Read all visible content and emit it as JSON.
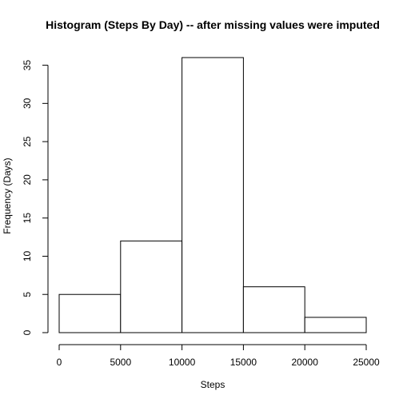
{
  "chart_data": {
    "type": "bar",
    "title": "Histogram (Steps By Day) -- after missing values were imputed",
    "xlabel": "Steps",
    "ylabel": "Frequency (Days)",
    "bins": [
      {
        "from": 0,
        "to": 5000,
        "value": 5
      },
      {
        "from": 5000,
        "to": 10000,
        "value": 12
      },
      {
        "from": 10000,
        "to": 15000,
        "value": 36
      },
      {
        "from": 15000,
        "to": 20000,
        "value": 6
      },
      {
        "from": 20000,
        "to": 25000,
        "value": 2
      }
    ],
    "xlim": [
      0,
      25000
    ],
    "ylim": [
      0,
      36
    ],
    "xticks": [
      0,
      5000,
      10000,
      15000,
      20000,
      25000
    ],
    "yticks": [
      0,
      5,
      10,
      15,
      20,
      25,
      30,
      35
    ],
    "grid": false,
    "legend": "none",
    "bar_fill": "#ffffff",
    "bar_stroke": "#000000"
  }
}
